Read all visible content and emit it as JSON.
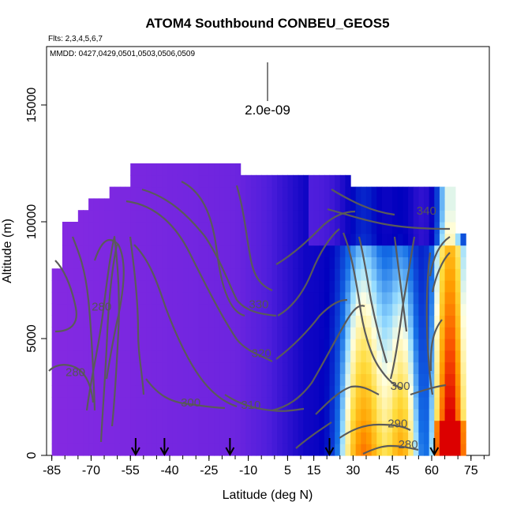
{
  "chart_data": {
    "type": "heatmap",
    "title": "ATOM4 Southbound CONBEU_GEOS5",
    "flights_label": "Flts: 2,3,4,5,6,7",
    "mmdd_label": "MMDD: 0427,0429,0501,0503,0506,0509",
    "xlabel": "Latitude (deg N)",
    "ylabel": "Altitude (m)",
    "xlim": [
      -87,
      82
    ],
    "ylim": [
      0,
      17500
    ],
    "x_ticks": [
      -85,
      -70,
      -55,
      -40,
      -25,
      -10,
      5,
      15,
      30,
      45,
      60,
      75
    ],
    "y_ticks": [
      0,
      5000,
      10000,
      15000
    ],
    "scale_label": "2.0e-09",
    "colors": {
      "low": "#8a2be2",
      "mid": "#0000b8",
      "high_light": "#ffffe0",
      "high": "#ffb000",
      "max": "#e00000",
      "contour": "#5a5a5a"
    },
    "contour_labels": [
      {
        "text": "280",
        "lat": -66,
        "alt": 6200
      },
      {
        "text": "280",
        "lat": -76,
        "alt": 3400
      },
      {
        "text": "300",
        "lat": -32,
        "alt": 2100
      },
      {
        "text": "310",
        "lat": -9,
        "alt": 2000
      },
      {
        "text": "320",
        "lat": -5,
        "alt": 4200
      },
      {
        "text": "330",
        "lat": -6,
        "alt": 6300
      },
      {
        "text": "340",
        "lat": 58,
        "alt": 10300
      },
      {
        "text": "300",
        "lat": 48,
        "alt": 2800
      },
      {
        "text": "290",
        "lat": 47,
        "alt": 1200
      },
      {
        "text": "280",
        "lat": 51,
        "alt": 300
      }
    ],
    "flight_arrows_lat": [
      -53,
      -42,
      -17,
      21,
      61
    ]
  }
}
